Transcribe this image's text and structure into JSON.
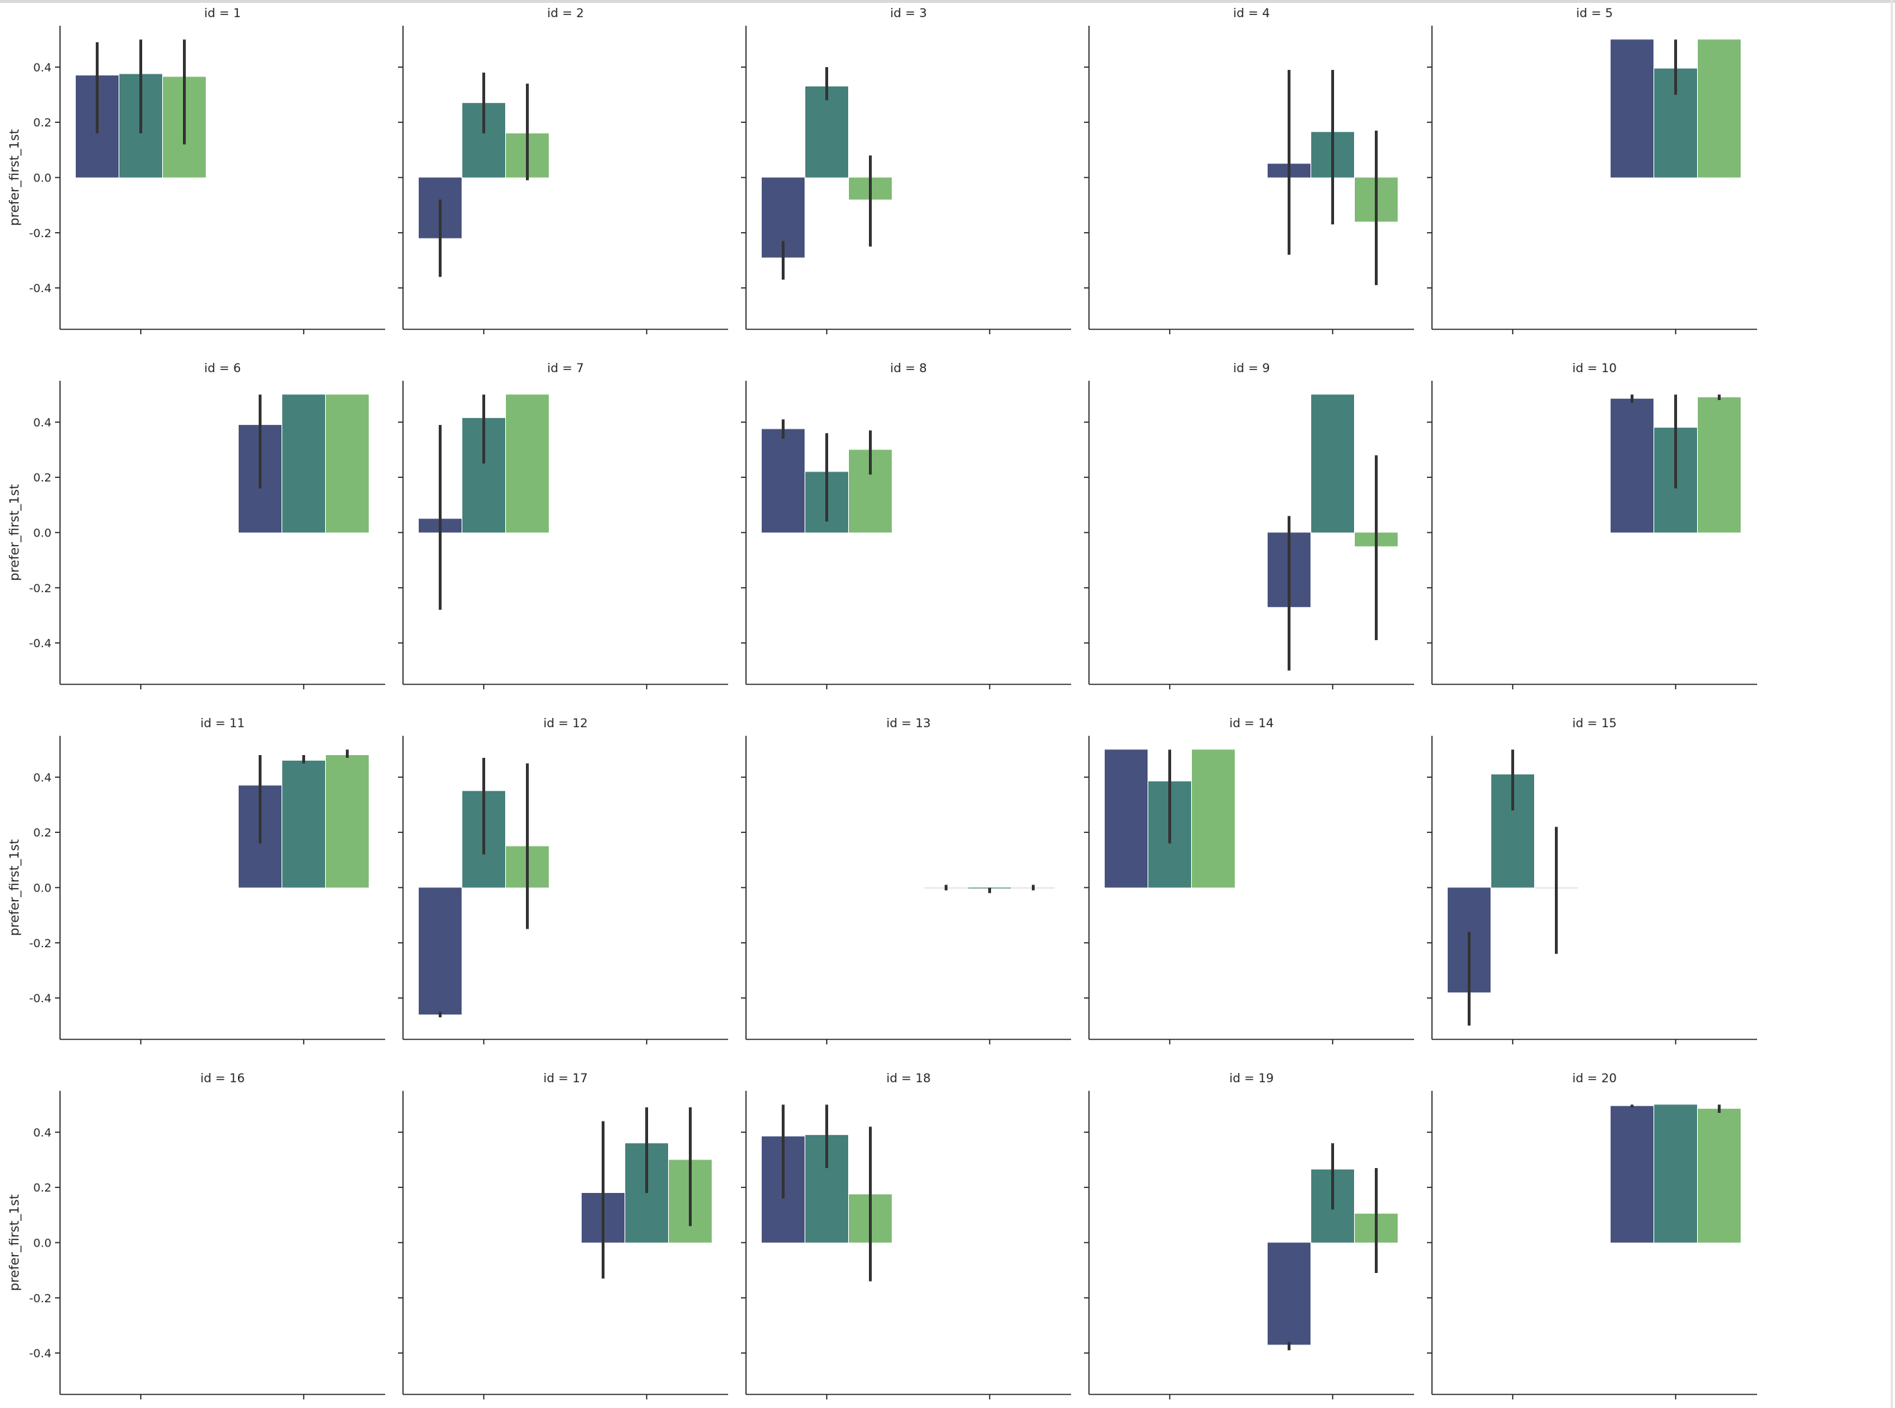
{
  "chart_data": {
    "type": "bar",
    "layout": "facet-grid 4 rows x 5 columns, shared y axis, x tick labels not shown",
    "ylabel": "prefer_first_1st",
    "ylim": [
      -0.55,
      0.55
    ],
    "yticks": [
      -0.4,
      -0.2,
      0.0,
      0.2,
      0.4
    ],
    "grid": false,
    "hue_colors": [
      "#46527d",
      "#45807a",
      "#7fba74"
    ],
    "error_bar_color": "#333333",
    "panels": [
      {
        "title": "id = 1",
        "bars": [
          {
            "slot": 0,
            "hue": 0,
            "value": 0.37,
            "ci": [
              0.16,
              0.49
            ]
          },
          {
            "slot": 0,
            "hue": 1,
            "value": 0.375,
            "ci": [
              0.16,
              0.5
            ]
          },
          {
            "slot": 0,
            "hue": 2,
            "value": 0.365,
            "ci": [
              0.12,
              0.5
            ]
          }
        ]
      },
      {
        "title": "id = 2",
        "bars": [
          {
            "slot": 0,
            "hue": 0,
            "value": -0.22,
            "ci": [
              -0.36,
              -0.08
            ]
          },
          {
            "slot": 0,
            "hue": 1,
            "value": 0.27,
            "ci": [
              0.16,
              0.38
            ]
          },
          {
            "slot": 0,
            "hue": 2,
            "value": 0.16,
            "ci": [
              -0.01,
              0.34
            ]
          }
        ]
      },
      {
        "title": "id = 3",
        "bars": [
          {
            "slot": 0,
            "hue": 0,
            "value": -0.29,
            "ci": [
              -0.37,
              -0.23
            ]
          },
          {
            "slot": 0,
            "hue": 1,
            "value": 0.33,
            "ci": [
              0.28,
              0.4
            ]
          },
          {
            "slot": 0,
            "hue": 2,
            "value": -0.08,
            "ci": [
              -0.25,
              0.08
            ]
          }
        ]
      },
      {
        "title": "id = 4",
        "bars": [
          {
            "slot": 1,
            "hue": 0,
            "value": 0.05,
            "ci": [
              -0.28,
              0.39
            ]
          },
          {
            "slot": 1,
            "hue": 1,
            "value": 0.165,
            "ci": [
              -0.17,
              0.39
            ]
          },
          {
            "slot": 1,
            "hue": 2,
            "value": -0.16,
            "ci": [
              -0.39,
              0.17
            ]
          }
        ]
      },
      {
        "title": "id = 5",
        "bars": [
          {
            "slot": 1,
            "hue": 0,
            "value": 0.5,
            "ci": null
          },
          {
            "slot": 1,
            "hue": 1,
            "value": 0.395,
            "ci": [
              0.3,
              0.5
            ]
          },
          {
            "slot": 1,
            "hue": 2,
            "value": 0.5,
            "ci": null
          }
        ]
      },
      {
        "title": "id = 6",
        "bars": [
          {
            "slot": 1,
            "hue": 0,
            "value": 0.39,
            "ci": [
              0.16,
              0.5
            ]
          },
          {
            "slot": 1,
            "hue": 1,
            "value": 0.5,
            "ci": null
          },
          {
            "slot": 1,
            "hue": 2,
            "value": 0.5,
            "ci": null
          }
        ]
      },
      {
        "title": "id = 7",
        "bars": [
          {
            "slot": 0,
            "hue": 0,
            "value": 0.05,
            "ci": [
              -0.28,
              0.39
            ]
          },
          {
            "slot": 0,
            "hue": 1,
            "value": 0.415,
            "ci": [
              0.25,
              0.5
            ]
          },
          {
            "slot": 0,
            "hue": 2,
            "value": 0.5,
            "ci": null
          }
        ]
      },
      {
        "title": "id = 8",
        "bars": [
          {
            "slot": 0,
            "hue": 0,
            "value": 0.375,
            "ci": [
              0.34,
              0.41
            ]
          },
          {
            "slot": 0,
            "hue": 1,
            "value": 0.22,
            "ci": [
              0.04,
              0.36
            ]
          },
          {
            "slot": 0,
            "hue": 2,
            "value": 0.3,
            "ci": [
              0.21,
              0.37
            ]
          }
        ]
      },
      {
        "title": "id = 9",
        "bars": [
          {
            "slot": 1,
            "hue": 0,
            "value": -0.27,
            "ci": [
              -0.5,
              0.06
            ]
          },
          {
            "slot": 1,
            "hue": 1,
            "value": 0.5,
            "ci": null
          },
          {
            "slot": 1,
            "hue": 2,
            "value": -0.05,
            "ci": [
              -0.39,
              0.28
            ]
          }
        ]
      },
      {
        "title": "id = 10",
        "bars": [
          {
            "slot": 1,
            "hue": 0,
            "value": 0.485,
            "ci": [
              0.47,
              0.5
            ]
          },
          {
            "slot": 1,
            "hue": 1,
            "value": 0.38,
            "ci": [
              0.16,
              0.5
            ]
          },
          {
            "slot": 1,
            "hue": 2,
            "value": 0.49,
            "ci": [
              0.48,
              0.5
            ]
          }
        ]
      },
      {
        "title": "id = 11",
        "bars": [
          {
            "slot": 1,
            "hue": 0,
            "value": 0.37,
            "ci": [
              0.16,
              0.48
            ]
          },
          {
            "slot": 1,
            "hue": 1,
            "value": 0.46,
            "ci": [
              0.45,
              0.48
            ]
          },
          {
            "slot": 1,
            "hue": 2,
            "value": 0.48,
            "ci": [
              0.47,
              0.5
            ]
          }
        ]
      },
      {
        "title": "id = 12",
        "bars": [
          {
            "slot": 0,
            "hue": 0,
            "value": -0.46,
            "ci": [
              -0.47,
              -0.45
            ]
          },
          {
            "slot": 0,
            "hue": 1,
            "value": 0.35,
            "ci": [
              0.12,
              0.47
            ]
          },
          {
            "slot": 0,
            "hue": 2,
            "value": 0.15,
            "ci": [
              -0.15,
              0.45
            ]
          }
        ]
      },
      {
        "title": "id = 13",
        "bars": [
          {
            "slot": 1,
            "hue": 0,
            "value": 0.0,
            "ci": [
              -0.01,
              0.01
            ]
          },
          {
            "slot": 1,
            "hue": 1,
            "value": -0.003,
            "ci": [
              -0.02,
              0.0
            ]
          },
          {
            "slot": 1,
            "hue": 2,
            "value": 0.0,
            "ci": [
              -0.01,
              0.01
            ]
          }
        ]
      },
      {
        "title": "id = 14",
        "bars": [
          {
            "slot": 0,
            "hue": 0,
            "value": 0.5,
            "ci": null
          },
          {
            "slot": 0,
            "hue": 1,
            "value": 0.385,
            "ci": [
              0.16,
              0.5
            ]
          },
          {
            "slot": 0,
            "hue": 2,
            "value": 0.5,
            "ci": null
          }
        ]
      },
      {
        "title": "id = 15",
        "bars": [
          {
            "slot": 0,
            "hue": 0,
            "value": -0.38,
            "ci": [
              -0.5,
              -0.16
            ]
          },
          {
            "slot": 0,
            "hue": 1,
            "value": 0.41,
            "ci": [
              0.28,
              0.5
            ]
          },
          {
            "slot": 0,
            "hue": 2,
            "value": 0.0,
            "ci": [
              -0.24,
              0.22
            ]
          }
        ]
      },
      {
        "title": "id = 16",
        "bars": []
      },
      {
        "title": "id = 17",
        "bars": [
          {
            "slot": 1,
            "hue": 0,
            "value": 0.18,
            "ci": [
              -0.13,
              0.44
            ]
          },
          {
            "slot": 1,
            "hue": 1,
            "value": 0.36,
            "ci": [
              0.18,
              0.49
            ]
          },
          {
            "slot": 1,
            "hue": 2,
            "value": 0.3,
            "ci": [
              0.06,
              0.49
            ]
          }
        ]
      },
      {
        "title": "id = 18",
        "bars": [
          {
            "slot": 0,
            "hue": 0,
            "value": 0.385,
            "ci": [
              0.16,
              0.5
            ]
          },
          {
            "slot": 0,
            "hue": 1,
            "value": 0.39,
            "ci": [
              0.27,
              0.5
            ]
          },
          {
            "slot": 0,
            "hue": 2,
            "value": 0.175,
            "ci": [
              -0.14,
              0.42
            ]
          }
        ]
      },
      {
        "title": "id = 19",
        "bars": [
          {
            "slot": 1,
            "hue": 0,
            "value": -0.37,
            "ci": [
              -0.39,
              -0.36
            ]
          },
          {
            "slot": 1,
            "hue": 1,
            "value": 0.265,
            "ci": [
              0.12,
              0.36
            ]
          },
          {
            "slot": 1,
            "hue": 2,
            "value": 0.105,
            "ci": [
              -0.11,
              0.27
            ]
          }
        ]
      },
      {
        "title": "id = 20",
        "bars": [
          {
            "slot": 1,
            "hue": 0,
            "value": 0.495,
            "ci": [
              0.49,
              0.5
            ]
          },
          {
            "slot": 1,
            "hue": 1,
            "value": 0.5,
            "ci": null
          },
          {
            "slot": 1,
            "hue": 2,
            "value": 0.485,
            "ci": [
              0.47,
              0.5
            ]
          }
        ]
      }
    ]
  }
}
